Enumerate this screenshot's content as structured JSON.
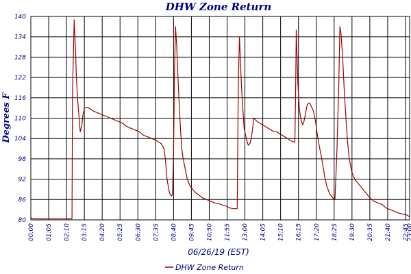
{
  "chart_data": {
    "type": "line",
    "title": "DHW Zone Return",
    "xlabel": "06/26/19 (EST)",
    "ylabel": "Degrees F",
    "ylim": [
      80,
      140
    ],
    "xlim": [
      0,
      1380
    ],
    "yticks": [
      80,
      86,
      92,
      98,
      104,
      110,
      116,
      122,
      128,
      134,
      140
    ],
    "xticks": [
      {
        "label": "00:00",
        "t": 0
      },
      {
        "label": "01:05",
        "t": 65
      },
      {
        "label": "02:10",
        "t": 130
      },
      {
        "label": "03:15",
        "t": 195
      },
      {
        "label": "04:20",
        "t": 260
      },
      {
        "label": "05:25",
        "t": 325
      },
      {
        "label": "06:30",
        "t": 390
      },
      {
        "label": "07:35",
        "t": 455
      },
      {
        "label": "08:40",
        "t": 520
      },
      {
        "label": "09:45",
        "t": 585
      },
      {
        "label": "10:50",
        "t": 650
      },
      {
        "label": "11:55",
        "t": 715
      },
      {
        "label": "13:00",
        "t": 780
      },
      {
        "label": "14:05",
        "t": 845
      },
      {
        "label": "15:10",
        "t": 910
      },
      {
        "label": "16:15",
        "t": 975
      },
      {
        "label": "17:20",
        "t": 1040
      },
      {
        "label": "18:25",
        "t": 1105
      },
      {
        "label": "19:30",
        "t": 1170
      },
      {
        "label": "20:35",
        "t": 1235
      },
      {
        "label": "21:40",
        "t": 1300
      },
      {
        "label": "22:45",
        "t": 1365
      },
      {
        "label": "23:00",
        "t": 1380
      }
    ],
    "grid": true,
    "legend": "bottom-center",
    "series": [
      {
        "name": "DHW Zone Return",
        "color": "#990000",
        "x": [
          0,
          2,
          10,
          30,
          60,
          90,
          120,
          150,
          152,
          158,
          163,
          166,
          170,
          175,
          180,
          186,
          190,
          196,
          205,
          215,
          230,
          245,
          260,
          275,
          290,
          305,
          320,
          335,
          350,
          365,
          380,
          395,
          410,
          425,
          440,
          455,
          465,
          475,
          485,
          490,
          496,
          505,
          512,
          516,
          520,
          523,
          527,
          531,
          535,
          540,
          545,
          550,
          555,
          560,
          565,
          570,
          580,
          590,
          600,
          610,
          625,
          640,
          655,
          670,
          685,
          700,
          715,
          725,
          740,
          752,
          756,
          760,
          764,
          767,
          772,
          777,
          785,
          792,
          798,
          803,
          808,
          812,
          818,
          825,
          835,
          845,
          855,
          865,
          875,
          885,
          895,
          905,
          915,
          925,
          935,
          945,
          955,
          962,
          965,
          967,
          970,
          973,
          978,
          983,
          990,
          995,
          1000,
          1007,
          1015,
          1022,
          1030,
          1037,
          1042,
          1048,
          1055,
          1062,
          1070,
          1078,
          1085,
          1090,
          1095,
          1100,
          1103,
          1108,
          1115,
          1122,
          1126,
          1130,
          1136,
          1142,
          1148,
          1154,
          1160,
          1165,
          1170,
          1180,
          1190,
          1200,
          1210,
          1220,
          1235,
          1250,
          1265,
          1280,
          1295,
          1310,
          1325,
          1340,
          1355,
          1368,
          1375,
          1380
        ],
        "values": [
          81,
          80.5,
          80.3,
          80.3,
          80.3,
          80.3,
          80.3,
          80.3,
          118,
          139,
          130,
          122,
          116,
          111,
          106,
          108,
          111,
          113,
          113.2,
          112.8,
          112,
          111.5,
          111,
          110.5,
          110,
          109.5,
          109,
          108.5,
          107.5,
          107,
          106.5,
          106,
          105,
          104.5,
          104,
          103.5,
          103,
          102.5,
          101,
          98,
          92,
          88,
          87,
          87.5,
          100,
          122,
          137,
          132,
          124,
          115,
          107,
          101,
          98,
          96,
          94,
          92,
          90,
          89,
          88,
          87.5,
          86.5,
          86,
          85.5,
          85,
          84.8,
          84.3,
          84,
          83.5,
          83.3,
          83.3,
          120,
          134,
          126,
          120,
          113,
          107,
          104,
          102,
          102.5,
          104,
          107,
          110,
          109.5,
          109,
          108.5,
          108,
          107.5,
          107,
          106.5,
          106,
          106,
          105.5,
          105,
          104.5,
          104,
          103.5,
          103,
          103,
          120,
          136,
          128,
          120,
          113,
          110,
          108,
          109,
          111,
          114,
          114.5,
          113.5,
          112,
          109,
          106,
          103,
          100,
          97,
          93,
          90,
          88.5,
          87.5,
          87,
          86.5,
          86,
          86,
          100,
          120,
          137,
          135,
          128,
          118,
          110,
          103,
          98,
          96,
          94,
          92,
          91,
          90,
          89,
          88,
          86.5,
          85.5,
          85,
          84.5,
          83.5,
          83,
          82.5,
          82,
          81.7,
          81.5,
          81.2,
          80.8
        ]
      }
    ]
  }
}
